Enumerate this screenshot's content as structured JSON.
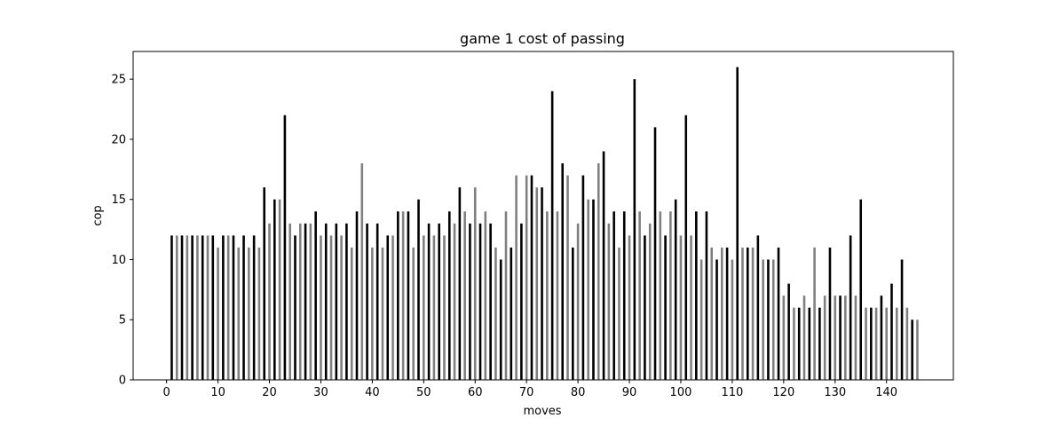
{
  "chart_data": {
    "type": "bar",
    "title": "game 1 cost of passing",
    "xlabel": "moves",
    "ylabel": "cop",
    "xlim": [
      -6.5,
      153.0
    ],
    "ylim": [
      0,
      27.3
    ],
    "xticks": [
      0,
      10,
      20,
      30,
      40,
      50,
      60,
      70,
      80,
      90,
      100,
      110,
      120,
      130,
      140
    ],
    "yticks": [
      0,
      5,
      10,
      15,
      20,
      25
    ],
    "grid": false,
    "legend": "none",
    "colors": {
      "odd_moves": "#000000",
      "even_moves": "#808080"
    },
    "x": [
      1,
      2,
      3,
      4,
      5,
      6,
      7,
      8,
      9,
      10,
      11,
      12,
      13,
      14,
      15,
      16,
      17,
      18,
      19,
      20,
      21,
      22,
      23,
      24,
      25,
      26,
      27,
      28,
      29,
      30,
      31,
      32,
      33,
      34,
      35,
      36,
      37,
      38,
      39,
      40,
      41,
      42,
      43,
      44,
      45,
      46,
      47,
      48,
      49,
      50,
      51,
      52,
      53,
      54,
      55,
      56,
      57,
      58,
      59,
      60,
      61,
      62,
      63,
      64,
      65,
      66,
      67,
      68,
      69,
      70,
      71,
      72,
      73,
      74,
      75,
      76,
      77,
      78,
      79,
      80,
      81,
      82,
      83,
      84,
      85,
      86,
      87,
      88,
      89,
      90,
      91,
      92,
      93,
      94,
      95,
      96,
      97,
      98,
      99,
      100,
      101,
      102,
      103,
      104,
      105,
      106,
      107,
      108,
      109,
      110,
      111,
      112,
      113,
      114,
      115,
      116,
      117,
      118,
      119,
      120,
      121,
      122,
      123,
      124,
      125,
      126,
      127,
      128,
      129,
      130,
      131,
      132,
      133,
      134,
      135,
      136,
      137,
      138,
      139,
      140,
      141,
      142,
      143,
      144,
      145,
      146
    ],
    "values": [
      12,
      12,
      12,
      12,
      12,
      12,
      12,
      12,
      12,
      11,
      12,
      12,
      12,
      11,
      12,
      11,
      12,
      11,
      16,
      13,
      15,
      15,
      22,
      13,
      12,
      13,
      13,
      13,
      14,
      12,
      13,
      12,
      13,
      12,
      13,
      11,
      14,
      18,
      13,
      11,
      13,
      11,
      12,
      12,
      14,
      14,
      14,
      11,
      15,
      12,
      13,
      12,
      13,
      12,
      14,
      13,
      16,
      14,
      13,
      16,
      13,
      14,
      13,
      11,
      10,
      14,
      11,
      17,
      13,
      17,
      17,
      16,
      16,
      14,
      24,
      14,
      18,
      17,
      11,
      13,
      17,
      15,
      15,
      18,
      19,
      13,
      14,
      11,
      14,
      12,
      25,
      14,
      12,
      13,
      21,
      14,
      12,
      14,
      15,
      12,
      22,
      12,
      14,
      10,
      14,
      11,
      10,
      11,
      11,
      10,
      26,
      11,
      11,
      11,
      12,
      10,
      10,
      10,
      11,
      7,
      8,
      6,
      6,
      7,
      6,
      11,
      6,
      7,
      11,
      7,
      7,
      7,
      12,
      7,
      15,
      6,
      6,
      6,
      7,
      6,
      8,
      6,
      10,
      6,
      5,
      5
    ]
  }
}
